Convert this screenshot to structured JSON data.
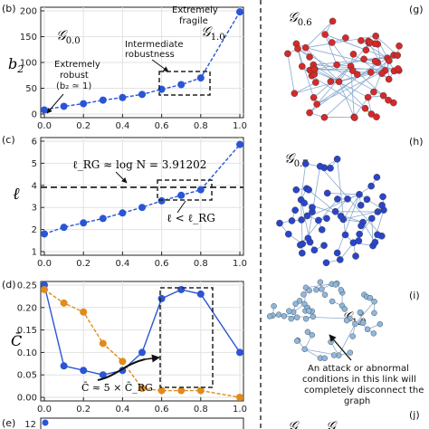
{
  "chart_data": [
    {
      "panel": "(b)",
      "type": "line",
      "ylabel": "b",
      "ylabel_sub": "2",
      "x": [
        0.0,
        0.1,
        0.2,
        0.3,
        0.4,
        0.5,
        0.6,
        0.7,
        0.8,
        1.0
      ],
      "series": [
        {
          "values": [
            8,
            15,
            20,
            27,
            32,
            38,
            48,
            57,
            70,
            198
          ],
          "color": "#2a55d6",
          "style": "dashed"
        }
      ],
      "xlim": [
        0,
        1
      ],
      "ylim": [
        0,
        200
      ],
      "xticks": [
        "0.0",
        "0.2",
        "0.4",
        "0.6",
        "0.8",
        "1.0"
      ],
      "yticks": [
        "0",
        "50",
        "100",
        "150",
        "200"
      ],
      "grid": true,
      "annotations": {
        "g00": "0.0",
        "g10": "1.0",
        "robust_1": "Extremely",
        "robust_2": "robust",
        "robust_cond": "(b₂ ≃ 1)",
        "intermediate_1": "Intermediate",
        "intermediate_2": "robustness",
        "fragile_1": "Extremely",
        "fragile_2": "fragile"
      }
    },
    {
      "panel": "(c)",
      "type": "line",
      "ylabel": "ℓ",
      "x": [
        0.0,
        0.1,
        0.2,
        0.3,
        0.4,
        0.5,
        0.6,
        0.7,
        0.8,
        1.0
      ],
      "series": [
        {
          "values": [
            1.8,
            2.1,
            2.3,
            2.5,
            2.75,
            3.0,
            3.3,
            3.55,
            3.8,
            5.85
          ],
          "color": "#2a55d6",
          "style": "dashed"
        }
      ],
      "reference": {
        "value": 3.91202,
        "label": "ℓ_RG ≈ log N = 3.91202"
      },
      "xlim": [
        0,
        1
      ],
      "ylim": [
        1,
        6
      ],
      "xticks": [
        "0.0",
        "0.2",
        "0.4",
        "0.6",
        "0.8",
        "1.0"
      ],
      "yticks": [
        "1",
        "2",
        "3",
        "4",
        "5",
        "6"
      ],
      "grid": true,
      "annotations": {
        "lt_rg": "ℓ < ℓ_RG"
      }
    },
    {
      "panel": "(d)",
      "type": "line",
      "ylabel": "C̄",
      "x": [
        0.0,
        0.1,
        0.2,
        0.3,
        0.4,
        0.5,
        0.6,
        0.7,
        0.8,
        1.0
      ],
      "series": [
        {
          "values": [
            0.25,
            0.07,
            0.06,
            0.05,
            0.06,
            0.1,
            0.22,
            0.24,
            0.23,
            0.1
          ],
          "color": "#2a55d6",
          "style": "solid"
        },
        {
          "values": [
            0.24,
            0.21,
            0.19,
            0.12,
            0.08,
            0.02,
            0.015,
            0.015,
            0.015,
            0.0
          ],
          "color": "#e08b1c",
          "style": "dashed"
        }
      ],
      "xlim": [
        0,
        1
      ],
      "ylim": [
        0,
        0.25
      ],
      "xticks": [
        "0.0",
        "0.2",
        "0.4",
        "0.6",
        "0.8",
        "1.0"
      ],
      "yticks": [
        "0.00",
        "0.05",
        "0.10",
        "0.15",
        "0.20",
        "0.25"
      ],
      "grid": true,
      "annotations": {
        "ratio": "C̄ ≈ 5 × C̄_RG"
      }
    }
  ],
  "partial_panel": {
    "label": "(e)",
    "ytick": "12"
  },
  "networks": [
    {
      "panel": "(g)",
      "title": "0.6",
      "node_color": "#d42a2a"
    },
    {
      "panel": "(h)",
      "title": "0.7",
      "node_color": "#2a45c8"
    },
    {
      "panel": "(i)",
      "title": "1.0",
      "node_color": "#8fb7dd",
      "note": [
        "An attack or abnormal",
        "conditions in this link will",
        "completely disconnect the",
        "graph"
      ]
    },
    {
      "panel": "(j)",
      "title": ""
    }
  ]
}
